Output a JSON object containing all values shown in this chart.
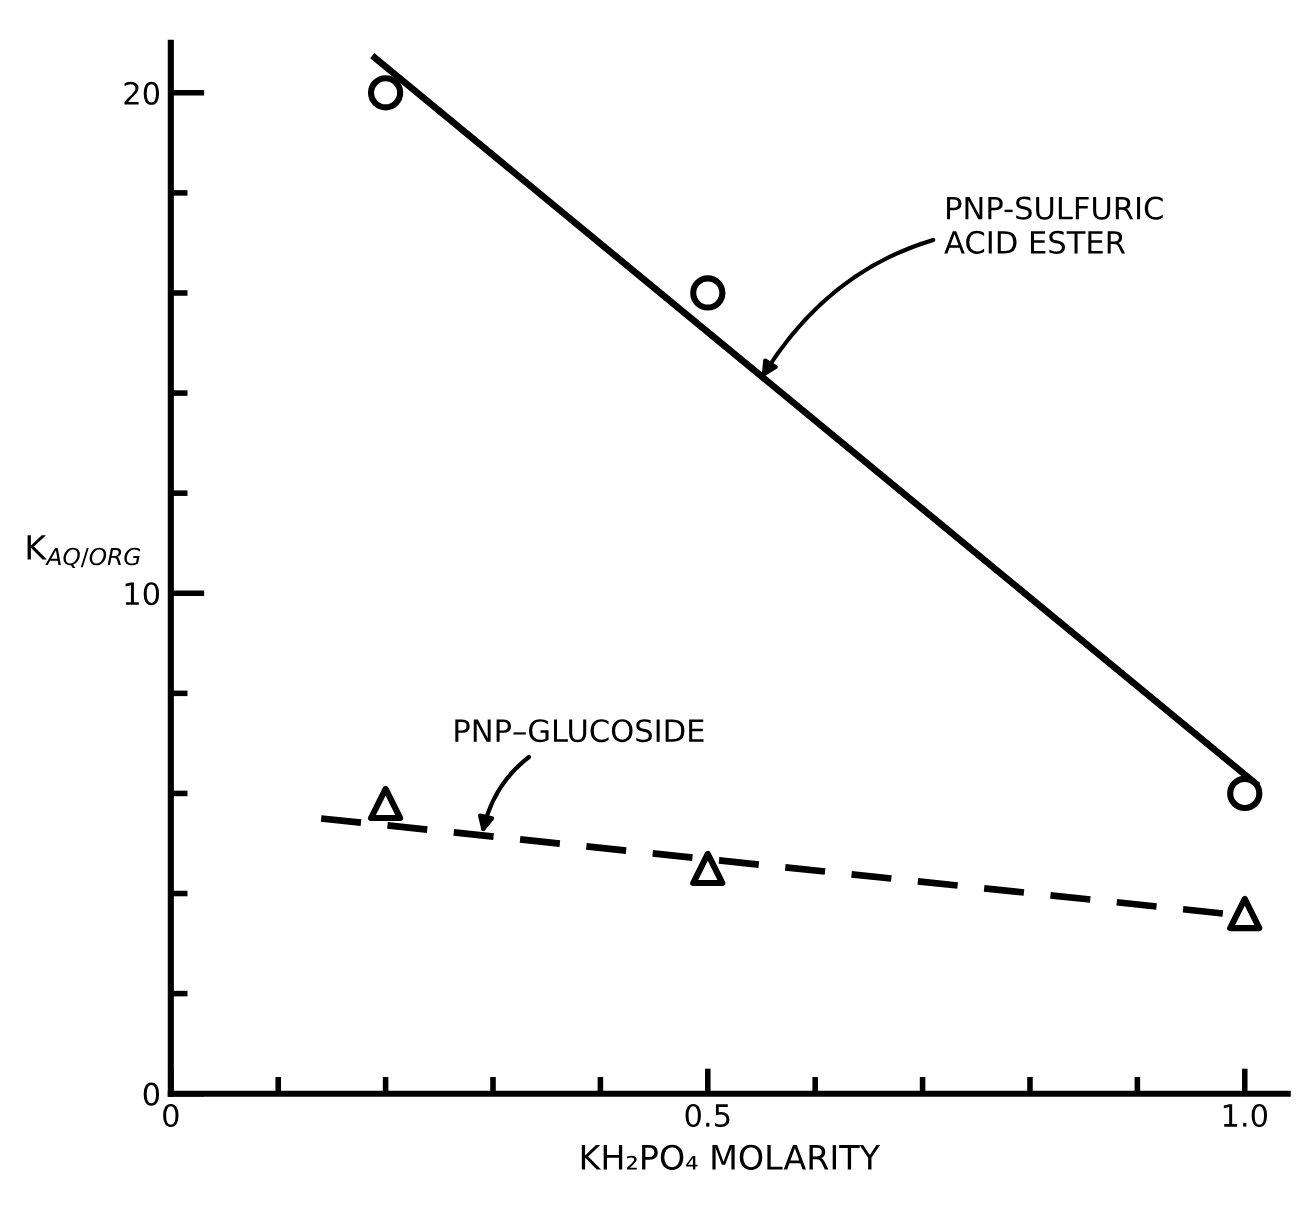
{
  "chart_data": {
    "type": "scatter",
    "xlabel": "KH₂PO₄ MOLARITY",
    "ylabel": "K$_{AQ/ORG}$",
    "xlim": [
      0,
      1.04
    ],
    "ylim": [
      0,
      21
    ],
    "xticks": [
      0,
      {
        "value": 0.1,
        "label": null
      },
      {
        "value": 0.2,
        "label": null
      },
      {
        "value": 0.3,
        "label": null
      },
      {
        "value": 0.4,
        "label": null
      },
      0.5,
      {
        "value": 0.6,
        "label": null
      },
      {
        "value": 0.7,
        "label": null
      },
      {
        "value": 0.8,
        "label": null
      },
      {
        "value": 0.9,
        "label": null
      },
      {
        "value": 1.0,
        "label": "1.0"
      }
    ],
    "yticks": [
      0,
      {
        "value": 2,
        "label": null
      },
      {
        "value": 4,
        "label": null
      },
      {
        "value": 6,
        "label": null
      },
      {
        "value": 8,
        "label": null
      },
      10,
      {
        "value": 12,
        "label": null
      },
      {
        "value": 14,
        "label": null
      },
      {
        "value": 16,
        "label": null
      },
      {
        "value": 18,
        "label": null
      },
      20
    ],
    "grid": false,
    "legend": false,
    "series": [
      {
        "marker": "circle",
        "color": "#000000",
        "x": [
          0.2,
          0.5,
          1.0
        ],
        "values": [
          20.0,
          16.0,
          6.0
        ]
      },
      {
        "marker": "triangle",
        "color": "#000000",
        "x": [
          0.2,
          0.5,
          1.0
        ],
        "values": [
          5.8,
          4.5,
          3.6
        ]
      },
      {
        "type": "line",
        "line_style": "solid",
        "color": "#000000",
        "x": [
          0.19,
          1.01
        ],
        "values": [
          20.7,
          6.2
        ]
      },
      {
        "type": "line",
        "line_style": "dashed",
        "color": "#000000",
        "x": [
          0.14,
          0.98
        ],
        "values": [
          5.5,
          3.6
        ]
      }
    ],
    "annotations": [
      {
        "text": "PNP-SULFURIC\nACID ESTER",
        "x": 0.55,
        "y": 14.3
      },
      {
        "text": "PNP–GLUCOSIDE",
        "x": 0.29,
        "y": 5.2
      }
    ]
  }
}
